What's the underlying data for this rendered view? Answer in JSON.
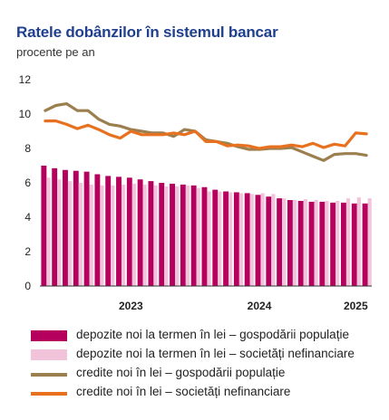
{
  "title": "Ratele dobânzilor în sistemul bancar",
  "subtitle": "procente pe an",
  "colors": {
    "households_deposits": "#b5005e",
    "companies_deposits": "#f2c4dc",
    "households_credit": "#9c7f4f",
    "companies_credit": "#e8711f",
    "axis": "#333333"
  },
  "chart_data": {
    "type": "bar",
    "grid": false,
    "legend_position": "bottom",
    "ylim": [
      0,
      12
    ],
    "yticks": [
      "0",
      "2",
      "4",
      "6",
      "8",
      "10",
      "12"
    ],
    "xticks": [
      {
        "label": "2023",
        "index": 8
      },
      {
        "label": "2024",
        "index": 20
      },
      {
        "label": "2025",
        "index": 29
      }
    ],
    "n_periods": 31,
    "series": [
      {
        "name": "depozite noi la termen în lei – gospodării populație",
        "kind": "bar",
        "values": [
          7.0,
          6.85,
          6.75,
          6.7,
          6.65,
          6.5,
          6.4,
          6.35,
          6.3,
          6.2,
          6.1,
          6.0,
          5.95,
          5.9,
          5.85,
          5.75,
          5.6,
          5.5,
          5.45,
          5.4,
          5.3,
          5.2,
          5.1,
          5.0,
          4.95,
          4.9,
          4.9,
          4.85,
          4.85,
          4.8,
          4.8
        ]
      },
      {
        "name": "depozite noi la termen în lei – societăți nefinanciare",
        "kind": "bar",
        "values": [
          6.3,
          6.2,
          6.1,
          6.0,
          5.9,
          5.85,
          5.85,
          5.9,
          5.95,
          5.9,
          5.85,
          5.8,
          5.8,
          5.85,
          5.7,
          5.5,
          5.5,
          5.45,
          5.4,
          5.35,
          5.4,
          5.35,
          5.1,
          5.0,
          5.05,
          5.0,
          4.95,
          4.95,
          5.1,
          5.15,
          5.1
        ]
      },
      {
        "name": "credite noi în lei – gospodării populație",
        "kind": "line",
        "values": [
          10.2,
          10.5,
          10.6,
          10.2,
          10.2,
          9.7,
          9.4,
          9.3,
          9.1,
          9.0,
          8.9,
          8.9,
          8.7,
          9.1,
          9.0,
          8.5,
          8.4,
          8.3,
          8.1,
          7.95,
          7.95,
          8.0,
          8.0,
          8.05,
          7.8,
          7.55,
          7.3,
          7.65,
          7.7,
          7.7,
          7.6
        ]
      },
      {
        "name": "credite noi în lei – societăți nefinanciare",
        "kind": "line",
        "values": [
          9.6,
          9.6,
          9.4,
          9.15,
          9.35,
          9.1,
          8.8,
          8.6,
          9.0,
          8.8,
          8.8,
          8.8,
          8.9,
          8.8,
          9.0,
          8.4,
          8.4,
          8.15,
          8.2,
          8.15,
          8.0,
          8.1,
          8.1,
          8.2,
          8.1,
          8.3,
          8.05,
          8.25,
          8.15,
          8.9,
          8.85
        ]
      }
    ]
  }
}
